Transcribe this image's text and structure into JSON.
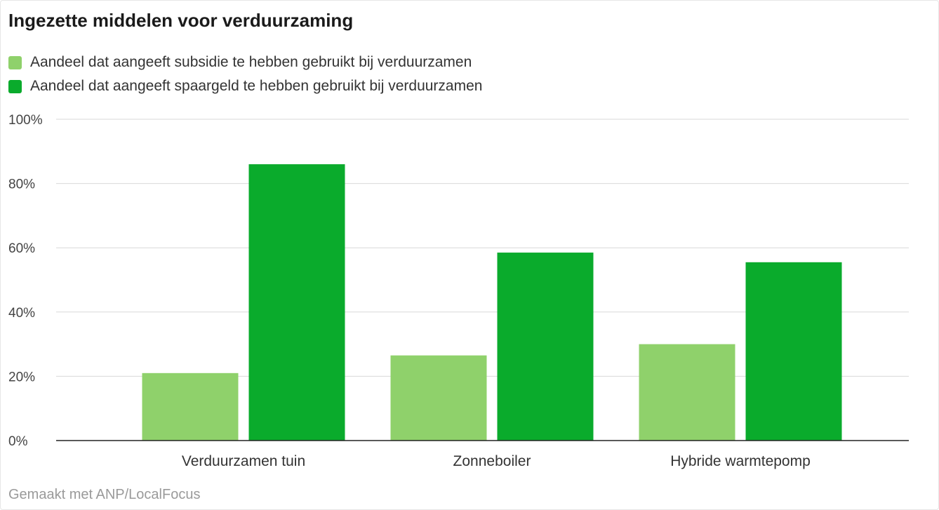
{
  "chart_data": {
    "type": "bar",
    "title": "Ingezette middelen voor verduurzaming",
    "categories": [
      "Verduurzamen tuin",
      "Zonneboiler",
      "Hybride warmtepomp"
    ],
    "series": [
      {
        "name": "Aandeel dat aangeeft subsidie te hebben gebruikt bij verduurzamen",
        "color": "#8fd16b",
        "values": [
          21,
          26.5,
          30
        ]
      },
      {
        "name": "Aandeel dat aangeeft spaargeld te hebben gebruikt bij verduurzamen",
        "color": "#0aab2c",
        "values": [
          86,
          58.5,
          55.5
        ]
      }
    ],
    "ylim": [
      0,
      100
    ],
    "yticks": [
      "0%",
      "20%",
      "40%",
      "60%",
      "80%",
      "100%"
    ],
    "grid": true,
    "legend_position": "top-left"
  },
  "footer": {
    "credit": "Gemaakt met ANP/LocalFocus"
  }
}
